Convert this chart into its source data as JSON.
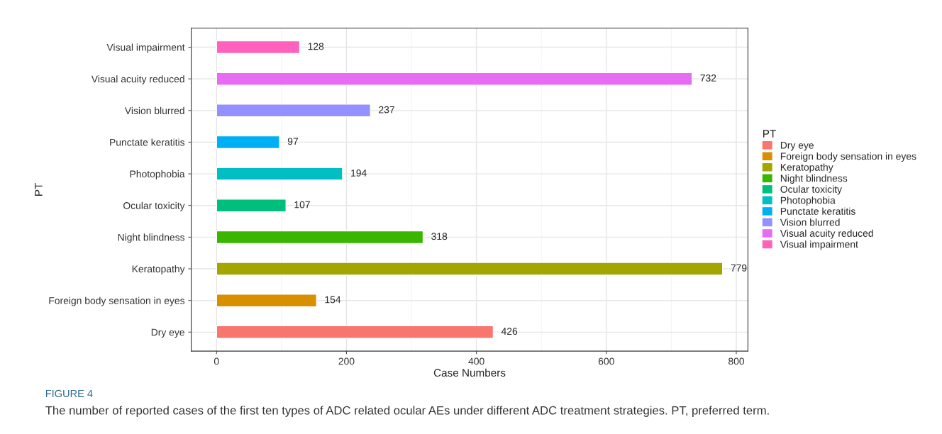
{
  "chart_data": {
    "type": "bar",
    "orientation": "horizontal",
    "xlabel": "Case Numbers",
    "ylabel": "PT",
    "legend_title": "PT",
    "legend": "right",
    "categories": [
      "Visual impairment",
      "Visual acuity reduced",
      "Vision blurred",
      "Punctate keratitis",
      "Photophobia",
      "Ocular toxicity",
      "Night blindness",
      "Keratopathy",
      "Foreign body sensation in eyes",
      "Dry eye"
    ],
    "series": [
      {
        "name": "Dry eye",
        "color": "#F8766D",
        "values": [
          null,
          null,
          null,
          null,
          null,
          null,
          null,
          null,
          null,
          426
        ]
      },
      {
        "name": "Foreign body sensation in eyes",
        "color": "#D89000",
        "values": [
          null,
          null,
          null,
          null,
          null,
          null,
          null,
          null,
          154,
          null
        ]
      },
      {
        "name": "Keratopathy",
        "color": "#A3A500",
        "values": [
          null,
          null,
          null,
          null,
          null,
          null,
          null,
          779,
          null,
          null
        ]
      },
      {
        "name": "Night blindness",
        "color": "#39B600",
        "values": [
          null,
          null,
          null,
          null,
          null,
          null,
          318,
          null,
          null,
          null
        ]
      },
      {
        "name": "Ocular toxicity",
        "color": "#00BF7D",
        "values": [
          null,
          null,
          null,
          null,
          null,
          107,
          null,
          null,
          null,
          null
        ]
      },
      {
        "name": "Photophobia",
        "color": "#00BFC4",
        "values": [
          null,
          null,
          null,
          null,
          194,
          null,
          null,
          null,
          null,
          null
        ]
      },
      {
        "name": "Punctate keratitis",
        "color": "#00B0F6",
        "values": [
          null,
          null,
          null,
          97,
          null,
          null,
          null,
          null,
          null,
          null
        ]
      },
      {
        "name": "Vision blurred",
        "color": "#9590FF",
        "values": [
          null,
          null,
          237,
          null,
          null,
          null,
          null,
          null,
          null,
          null
        ]
      },
      {
        "name": "Visual acuity reduced",
        "color": "#E76BF3",
        "values": [
          null,
          732,
          null,
          null,
          null,
          null,
          null,
          null,
          null,
          null
        ]
      },
      {
        "name": "Visual impairment",
        "color": "#FF62BC",
        "values": [
          128,
          null,
          null,
          null,
          null,
          null,
          null,
          null,
          null,
          null
        ]
      }
    ],
    "data_labels": true,
    "xlim": [
      -38.95,
      817.95
    ],
    "xticks": [
      0,
      200,
      400,
      600,
      800
    ],
    "grid": true,
    "annotations": [
      "FIGURE 4",
      "The number of reported cases of the first ten types of ADC related ocular AEs under different ADC treatment strategies. PT, preferred term."
    ]
  }
}
